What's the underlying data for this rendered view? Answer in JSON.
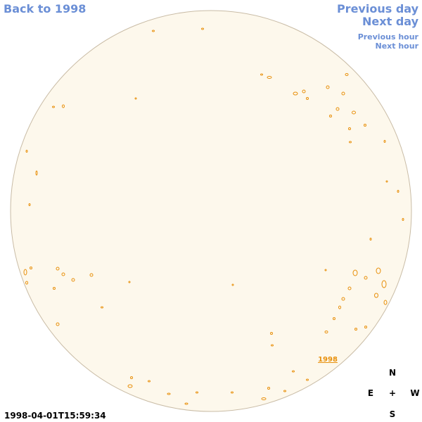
{
  "navigation": {
    "back": "Back to 1998",
    "previous_day": "Previous day",
    "next_day": "Next day",
    "previous_hour": "Previous hour",
    "next_hour": "Next hour"
  },
  "disk_label": "1998",
  "compass": {
    "north": "N",
    "east": "E",
    "center": "+",
    "west": "W",
    "south": "S"
  },
  "timestamp": "1998-04-01T15:59:34"
}
